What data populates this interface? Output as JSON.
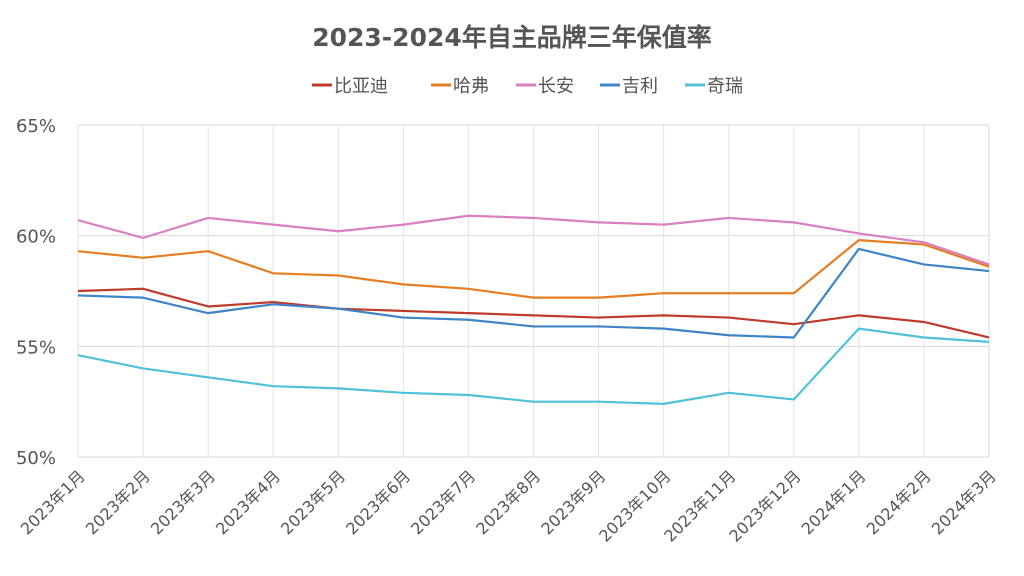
{
  "chart_data": {
    "type": "line",
    "title": "2023-2024年自主品牌三年保值率",
    "xlabel": "",
    "ylabel": "",
    "ylim": [
      50,
      65
    ],
    "yticks": [
      "50%",
      "55%",
      "60%",
      "65%"
    ],
    "ytick_values": [
      50,
      55,
      60,
      65
    ],
    "grid": true,
    "legend_position": "top-center",
    "categories": [
      "2023年1月",
      "2023年2月",
      "2023年3月",
      "2023年4月",
      "2023年5月",
      "2023年6月",
      "2023年7月",
      "2023年8月",
      "2023年9月",
      "2023年10月",
      "2023年11月",
      "2023年12月",
      "2024年1月",
      "2024年2月",
      "2024年3月"
    ],
    "series": [
      {
        "name": "比亚迪",
        "color": "#c0392b",
        "values": [
          57.5,
          57.6,
          56.8,
          57.0,
          56.7,
          56.6,
          56.5,
          56.4,
          56.3,
          56.4,
          56.3,
          56.0,
          56.4,
          56.1,
          55.4
        ]
      },
      {
        "name": "哈弗",
        "color": "#e67e22",
        "values": [
          59.3,
          59.0,
          59.3,
          58.3,
          58.2,
          57.8,
          57.6,
          57.2,
          57.2,
          57.4,
          57.4,
          57.4,
          59.8,
          59.6,
          58.6
        ]
      },
      {
        "name": "长安",
        "color": "#d980c0",
        "values": [
          60.7,
          59.9,
          60.8,
          60.5,
          60.2,
          60.5,
          60.9,
          60.8,
          60.6,
          60.5,
          60.8,
          60.6,
          60.1,
          59.7,
          58.7
        ]
      },
      {
        "name": "吉利",
        "color": "#3d85c6",
        "values": [
          57.3,
          57.2,
          56.5,
          56.9,
          56.7,
          56.3,
          56.2,
          55.9,
          55.9,
          55.8,
          55.5,
          55.4,
          59.4,
          58.7,
          58.4
        ]
      },
      {
        "name": "奇瑞",
        "color": "#4fc1d9",
        "values": [
          54.6,
          54.0,
          53.6,
          53.2,
          53.1,
          52.9,
          52.8,
          52.5,
          52.5,
          52.4,
          52.9,
          52.6,
          55.8,
          55.4,
          55.2
        ]
      }
    ]
  }
}
